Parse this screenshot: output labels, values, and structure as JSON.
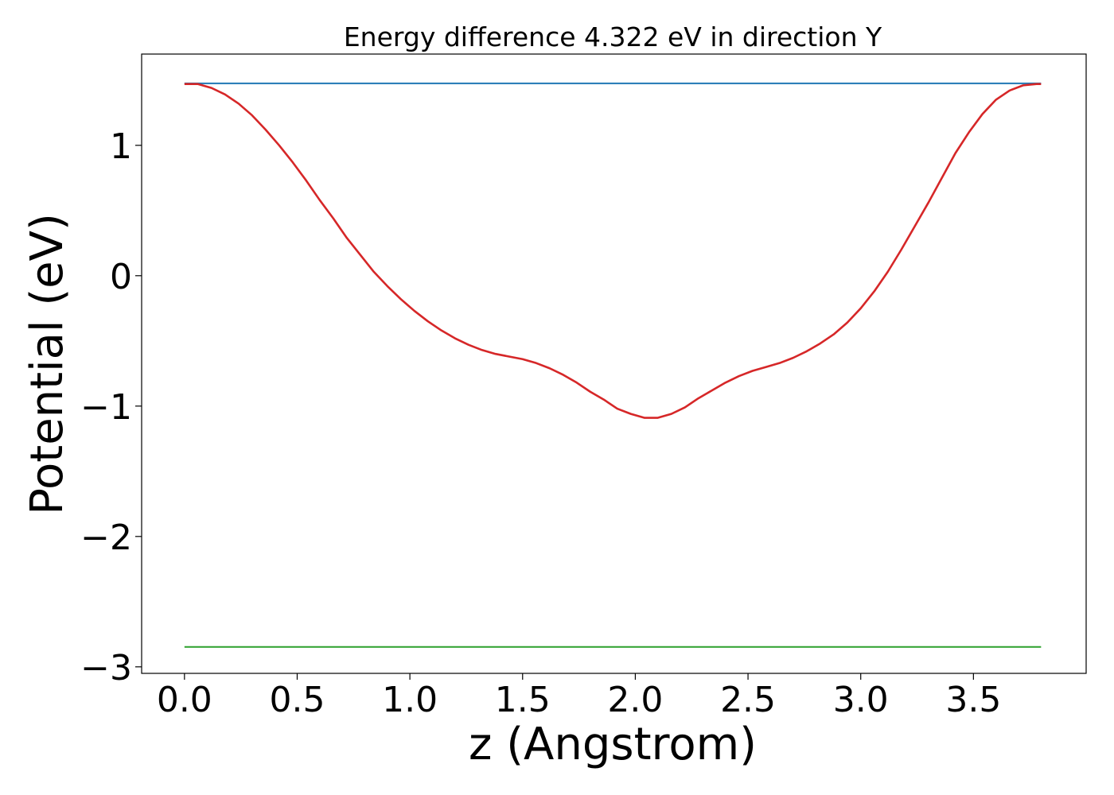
{
  "chart_data": {
    "type": "line",
    "title": "Energy difference 4.322 eV in direction Y",
    "xlabel": "z (Angstrom)",
    "ylabel": "Potential (eV)",
    "xlim": [
      -0.19,
      4.0
    ],
    "ylim": [
      -3.05,
      1.7
    ],
    "xticks": [
      0.0,
      0.5,
      1.0,
      1.5,
      2.0,
      2.5,
      3.0,
      3.5
    ],
    "xtick_labels": [
      "0.0",
      "0.5",
      "1.0",
      "1.5",
      "2.0",
      "2.5",
      "3.0",
      "3.5"
    ],
    "yticks": [
      1,
      0,
      -1,
      -2,
      -3
    ],
    "ytick_labels": [
      "1",
      "0",
      "−1",
      "−2",
      "−3"
    ],
    "grid": false,
    "series": [
      {
        "color": "#d62728",
        "x": [
          0.0,
          0.06,
          0.12,
          0.18,
          0.24,
          0.3,
          0.36,
          0.42,
          0.48,
          0.54,
          0.6,
          0.66,
          0.72,
          0.78,
          0.84,
          0.9,
          0.96,
          1.02,
          1.08,
          1.14,
          1.2,
          1.26,
          1.32,
          1.38,
          1.44,
          1.5,
          1.56,
          1.62,
          1.68,
          1.74,
          1.8,
          1.86,
          1.92,
          1.98,
          2.04,
          2.1,
          2.16,
          2.22,
          2.28,
          2.34,
          2.4,
          2.46,
          2.52,
          2.58,
          2.64,
          2.7,
          2.76,
          2.82,
          2.88,
          2.94,
          3.0,
          3.06,
          3.12,
          3.18,
          3.24,
          3.3,
          3.36,
          3.42,
          3.48,
          3.54,
          3.6,
          3.66,
          3.72,
          3.78,
          3.8
        ],
        "y": [
          1.47,
          1.47,
          1.44,
          1.39,
          1.32,
          1.23,
          1.12,
          1.0,
          0.87,
          0.73,
          0.58,
          0.44,
          0.29,
          0.16,
          0.03,
          -0.08,
          -0.18,
          -0.27,
          -0.35,
          -0.42,
          -0.48,
          -0.53,
          -0.57,
          -0.6,
          -0.62,
          -0.64,
          -0.67,
          -0.71,
          -0.76,
          -0.82,
          -0.89,
          -0.95,
          -1.02,
          -1.06,
          -1.09,
          -1.09,
          -1.06,
          -1.01,
          -0.94,
          -0.88,
          -0.82,
          -0.77,
          -0.73,
          -0.7,
          -0.67,
          -0.63,
          -0.58,
          -0.52,
          -0.45,
          -0.36,
          -0.25,
          -0.12,
          0.03,
          0.2,
          0.38,
          0.56,
          0.75,
          0.94,
          1.1,
          1.24,
          1.35,
          1.42,
          1.46,
          1.47,
          1.47
        ]
      },
      {
        "color": "#1f77b4",
        "x": [
          0.0,
          3.8
        ],
        "y": [
          1.475,
          1.475
        ]
      },
      {
        "color": "#2ca02c",
        "x": [
          0.0,
          3.8
        ],
        "y": [
          -2.847,
          -2.847
        ]
      }
    ]
  }
}
